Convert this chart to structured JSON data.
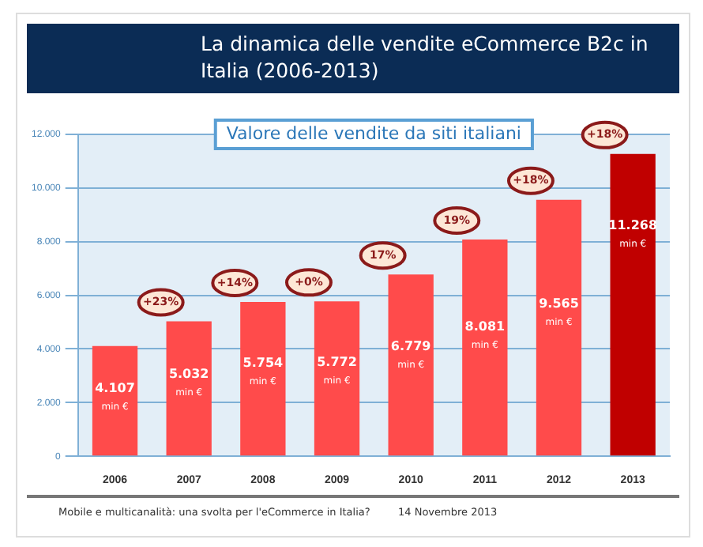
{
  "chart_data": {
    "type": "bar",
    "title": "La dinamica delle vendite eCommerce B2c in Italia (2006-2013)",
    "subtitle": "Valore delle vendite da siti italiani",
    "categories": [
      "2006",
      "2007",
      "2008",
      "2009",
      "2010",
      "2011",
      "2012",
      "2013"
    ],
    "values": [
      4107,
      5032,
      5754,
      5772,
      6779,
      8081,
      9565,
      11268
    ],
    "colors": [
      "#ff4b4b",
      "#ff4b4b",
      "#ff4b4b",
      "#ff4b4b",
      "#ff4b4b",
      "#ff4b4b",
      "#ff4b4b",
      "#c00000"
    ],
    "value_labels": [
      "4.107\nmin €",
      "5.032\nmin €",
      "5.754\nmin €",
      "5.772\nmin €",
      "6.779\nmin €",
      "8.081\nmin €",
      "9.565\nmin €",
      "11.268\nmin €"
    ],
    "ylim": [
      0,
      12000
    ],
    "yticks": [
      {
        "value": 0,
        "label": "0"
      },
      {
        "value": 2000,
        "label": "2.000"
      },
      {
        "value": 4000,
        "label": "4.000"
      },
      {
        "value": 6000,
        "label": "6.000"
      },
      {
        "value": 8000,
        "label": "8.000"
      },
      {
        "value": 10000,
        "label": "10.000"
      },
      {
        "value": 12000,
        "label": "12.000"
      }
    ],
    "grid": "y",
    "legend": false,
    "annotations": [
      {
        "text": "+23%",
        "x": "2007",
        "y": 5032
      },
      {
        "text": "+14%",
        "x": "2008",
        "y": 5754
      },
      {
        "text": "+0%",
        "x": "2009",
        "y": 5772
      },
      {
        "text": "17%",
        "x": "2010",
        "y": 6779
      },
      {
        "text": "19%",
        "x": "2011",
        "y": 8081
      },
      {
        "text": "+18%",
        "x": "2012",
        "y": 9565
      },
      {
        "text": "+18%",
        "x": "2013",
        "y": 11268
      },
      "Mobile e multicanalità: una svolta per l'eCommerce in Italia?",
      "14 Novembre 2013"
    ]
  }
}
